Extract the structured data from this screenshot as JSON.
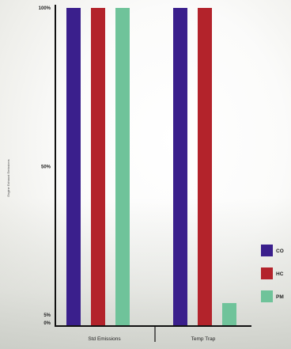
{
  "chart_data": {
    "type": "bar",
    "ylabel": "Engine Exhaust Emissions",
    "xlabel": "",
    "ylim": [
      0,
      100
    ],
    "y_ticks": [
      "0%",
      "5%",
      "50%",
      "100%"
    ],
    "categories": [
      "Std Emissions",
      "Temp Trap"
    ],
    "series": [
      {
        "name": "CO",
        "color": "#3a1f8c",
        "values": [
          100,
          100
        ]
      },
      {
        "name": "HC",
        "color": "#b3232b",
        "values": [
          100,
          100
        ]
      },
      {
        "name": "PM",
        "color": "#6fc39a",
        "values": [
          100,
          7
        ]
      }
    ],
    "legend": "right",
    "grid": false
  }
}
